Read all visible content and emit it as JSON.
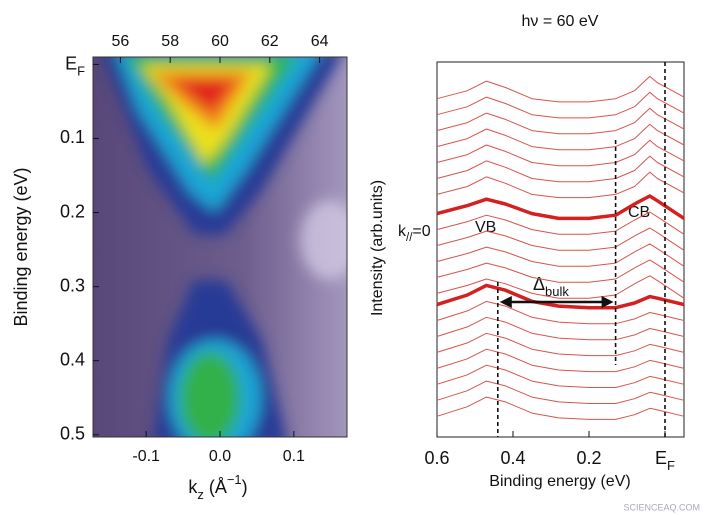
{
  "chart_data": [
    {
      "type": "heatmap",
      "xlabel": "kz (Å−1)",
      "ylabel": "Binding energy (eV)",
      "xlim": [
        -0.172,
        0.172
      ],
      "xticks": [
        -0.1,
        {
          "value": 0,
          "label": "0.0"
        },
        0.1
      ],
      "x2lim": [
        54.9,
        65.1
      ],
      "x2ticks": [
        56,
        58,
        60,
        62,
        64
      ],
      "ylim": [
        -0.01,
        0.503
      ],
      "yticks": [
        {
          "value": 0,
          "label": "EF"
        },
        0.1,
        0.2,
        0.3,
        0.4,
        0.5
      ]
    },
    {
      "type": "line",
      "title": "hν = 60 eV",
      "xlabel": "Binding energy (eV)",
      "ylabel": "Intensity (arb.units)",
      "xlim": [
        0.6,
        -0.05
      ],
      "xticks": [
        0.6,
        0.4,
        0.2,
        {
          "value": 0,
          "label": "EF"
        }
      ],
      "ylim": [
        0,
        23.5
      ],
      "x": [
        0.6,
        0.52,
        0.47,
        0.42,
        0.35,
        0.28,
        0.2,
        0.13,
        0.08,
        0.04,
        0.02,
        -0.05
      ],
      "series": [
        {
          "color": "#d9534f",
          "linewidth": 1,
          "values": [
            21.2,
            21.7,
            22.3,
            21.9,
            21.2,
            21,
            21,
            21.2,
            21.7,
            22.6,
            22.2,
            21.3
          ]
        },
        {
          "color": "#d9534f",
          "linewidth": 1,
          "values": [
            20.2,
            20.7,
            21.3,
            20.9,
            20.2,
            20,
            20,
            20.2,
            20.7,
            21.6,
            21.2,
            20.3
          ]
        },
        {
          "color": "#d9534f",
          "linewidth": 1,
          "values": [
            19.2,
            19.7,
            20.3,
            19.9,
            19.2,
            19,
            19,
            19.2,
            19.7,
            20.6,
            20.2,
            19.3
          ]
        },
        {
          "color": "#d9534f",
          "linewidth": 1,
          "values": [
            18.2,
            18.7,
            19.3,
            18.9,
            18.2,
            18,
            18,
            18.2,
            18.7,
            19.6,
            19.2,
            18.3
          ]
        },
        {
          "color": "#d9534f",
          "linewidth": 1,
          "values": [
            17.2,
            17.7,
            18.3,
            17.9,
            17.2,
            17,
            17,
            17.2,
            17.7,
            18.6,
            18.2,
            17.3
          ]
        },
        {
          "color": "#d9534f",
          "linewidth": 1,
          "values": [
            16.2,
            16.7,
            17.3,
            16.9,
            16.2,
            16,
            16,
            16.2,
            16.7,
            17.6,
            17.2,
            16.3
          ]
        },
        {
          "color": "#d9534f",
          "linewidth": 1,
          "values": [
            15.2,
            15.7,
            16.3,
            15.9,
            15.2,
            15,
            15,
            15.2,
            15.7,
            16.6,
            16.2,
            15.3
          ]
        },
        {
          "color": "#d42020",
          "linewidth": 3.5,
          "values": [
            14,
            14.5,
            14.9,
            14.6,
            14,
            13.7,
            13.7,
            13.9,
            14.6,
            15.1,
            14.8,
            13.7
          ]
        },
        {
          "color": "#d9534f",
          "linewidth": 1,
          "values": [
            13,
            13.5,
            13.9,
            13.6,
            13,
            12.7,
            12.7,
            12.9,
            13.6,
            14.1,
            13.8,
            12.7
          ]
        },
        {
          "color": "#d9534f",
          "linewidth": 1,
          "values": [
            12,
            12.5,
            12.9,
            12.6,
            12,
            11.7,
            11.7,
            11.9,
            12.6,
            13.1,
            12.8,
            11.7
          ]
        },
        {
          "color": "#d9534f",
          "linewidth": 1,
          "values": [
            11,
            11.5,
            11.9,
            11.6,
            11,
            10.7,
            10.7,
            10.9,
            11.6,
            12.1,
            11.8,
            10.7
          ]
        },
        {
          "color": "#d9534f",
          "linewidth": 1,
          "values": [
            10,
            10.5,
            10.9,
            10.6,
            10,
            9.7,
            9.7,
            9.9,
            10.6,
            11.1,
            10.8,
            9.7
          ]
        },
        {
          "color": "#d9534f",
          "linewidth": 1,
          "values": [
            9,
            9.5,
            9.9,
            9.6,
            9,
            8.7,
            8.7,
            8.9,
            9.6,
            10.1,
            9.8,
            8.7
          ]
        },
        {
          "color": "#d42020",
          "linewidth": 3.5,
          "values": [
            8.3,
            8.9,
            9.5,
            9.2,
            8.5,
            8.2,
            8.1,
            8.1,
            8.4,
            8.8,
            8.7,
            8.3
          ]
        },
        {
          "color": "#d9534f",
          "linewidth": 1,
          "values": [
            7.3,
            7.9,
            8.5,
            8.2,
            7.5,
            7.2,
            7.1,
            7.1,
            7.4,
            7.8,
            7.7,
            7.3
          ]
        },
        {
          "color": "#d9534f",
          "linewidth": 1,
          "values": [
            6.3,
            6.9,
            7.5,
            7.2,
            6.5,
            6.2,
            6.1,
            6.1,
            6.4,
            6.8,
            6.7,
            6.3
          ]
        },
        {
          "color": "#d9534f",
          "linewidth": 1,
          "values": [
            5.3,
            5.9,
            6.5,
            6.2,
            5.5,
            5.2,
            5.1,
            5.1,
            5.4,
            5.8,
            5.7,
            5.3
          ]
        },
        {
          "color": "#d9534f",
          "linewidth": 1,
          "values": [
            4.3,
            4.9,
            5.5,
            5.2,
            4.5,
            4.2,
            4.1,
            4.1,
            4.4,
            4.8,
            4.7,
            4.3
          ]
        },
        {
          "color": "#d9534f",
          "linewidth": 1,
          "values": [
            3.3,
            3.9,
            4.5,
            4.2,
            3.5,
            3.2,
            3.1,
            3.1,
            3.4,
            3.8,
            3.7,
            3.3
          ]
        },
        {
          "color": "#d9534f",
          "linewidth": 1,
          "values": [
            2.3,
            2.9,
            3.5,
            3.2,
            2.5,
            2.2,
            2.1,
            2.1,
            2.4,
            2.8,
            2.7,
            2.3
          ]
        },
        {
          "color": "#d9534f",
          "linewidth": 1,
          "values": [
            1.3,
            1.9,
            2.5,
            2.2,
            1.5,
            1.2,
            1.1,
            1.1,
            1.4,
            1.8,
            1.7,
            1.3
          ]
        }
      ],
      "vlines": [
        0.44,
        0.13,
        0
      ],
      "annotations": {
        "vb": "VB",
        "cb": "CB",
        "k0": "k//=0",
        "gap": "Δbulk"
      }
    },
    {
      "watermark": "SCIENCEAQ.COM"
    }
  ]
}
